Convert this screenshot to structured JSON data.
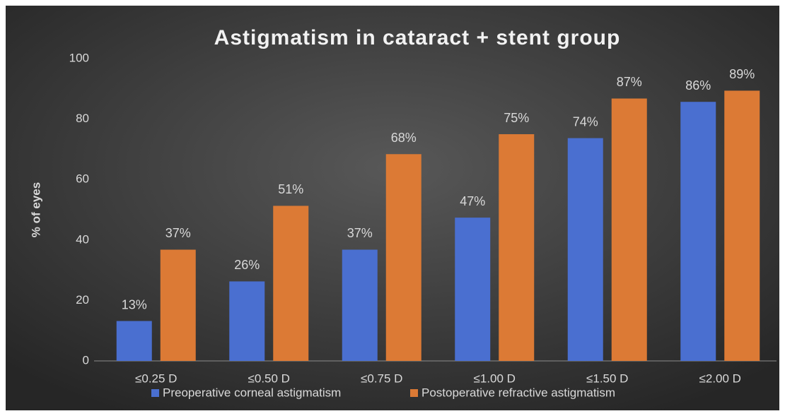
{
  "chart_data": {
    "type": "bar",
    "title": "Astigmatism in cataract + stent group",
    "y_label": "% of eyes",
    "categories": [
      "≤0.25 D",
      "≤0.50 D",
      "≤0.75 D",
      "≤1.00 D",
      "≤1.50 D",
      "≤2.00 D"
    ],
    "series": [
      {
        "name": "Preoperative corneal astigmatism",
        "color": "#4a6fd0",
        "values": [
          13.2,
          26.3,
          36.8,
          47.4,
          73.7,
          85.7
        ],
        "value_labels": [
          "13%",
          "26%",
          "37%",
          "47%",
          "74%",
          "86%"
        ]
      },
      {
        "name": "Postoperative refractive astigmatism",
        "color": "#dc7a35",
        "values": [
          36.8,
          51.3,
          68.4,
          75,
          86.8,
          89.4
        ],
        "value_labels": [
          "37%",
          "51%",
          "68%",
          "75%",
          "87%",
          "89%"
        ]
      }
    ],
    "ylim": [
      0,
      100
    ],
    "yticks": [
      0,
      20,
      40,
      60,
      80,
      100
    ],
    "grid": false,
    "legend": "bottom"
  }
}
